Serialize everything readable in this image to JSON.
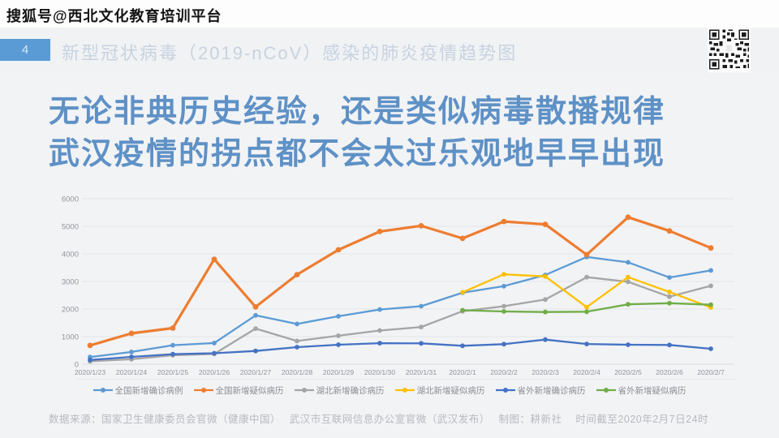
{
  "watermark": "搜狐号@西北文化教育培训平台",
  "header": {
    "page_number": "4",
    "title": "新型冠状病毒（2019-nCoV）感染的肺炎疫情趋势图"
  },
  "headline": {
    "line1": "无论非典历史经验，还是类似病毒散播规律",
    "line2": "武汉疫情的拐点都不会太过乐观地早早出现"
  },
  "colors": {
    "headline_blue": "#5e91c6",
    "badge_blue": "#5b9bd5",
    "grid_gray": "#e3e4e7"
  },
  "chart_data": {
    "type": "line",
    "title": "新型冠状病毒（2019-nCoV）感染的肺炎疫情趋势图",
    "xlabel": "",
    "ylabel": "",
    "ylim": [
      0,
      6000
    ],
    "ytick_step": 1000,
    "grid": true,
    "legend_position": "bottom",
    "categories": [
      "2020/1/23",
      "2020/1/24",
      "2020/1/25",
      "2020/1/26",
      "2020/1/27",
      "2020/1/28",
      "2020/1/29",
      "2020/1/30",
      "2020/1/31",
      "2020/2/1",
      "2020/2/2",
      "2020/2/3",
      "2020/2/4",
      "2020/2/5",
      "2020/2/6",
      "2020/2/7"
    ],
    "series": [
      {
        "name": "全国新增确诊病例",
        "color": "#5b9bd5",
        "values": [
          259,
          444,
          688,
          769,
          1771,
          1459,
          1737,
          1982,
          2102,
          2590,
          2829,
          3235,
          3887,
          3694,
          3143,
          3399
        ]
      },
      {
        "name": "全国新增疑似病历",
        "color": "#ed7d31",
        "values": [
          680,
          1118,
          1309,
          3806,
          2077,
          3248,
          4148,
          4812,
          5019,
          4562,
          5173,
          5072,
          3971,
          5328,
          4833,
          4214
        ]
      },
      {
        "name": "湖北新增确诊病历",
        "color": "#a5a5a5",
        "values": [
          105,
          180,
          323,
          371,
          1291,
          840,
          1032,
          1220,
          1347,
          1921,
          2103,
          2345,
          3156,
          2987,
          2447,
          2841
        ]
      },
      {
        "name": "湖北新增疑似病历",
        "color": "#ffc000",
        "values": [
          null,
          null,
          null,
          null,
          null,
          null,
          null,
          null,
          null,
          2606,
          3260,
          3182,
          2067,
          3156,
          2622,
          2057
        ]
      },
      {
        "name": "省外新增确诊病历",
        "color": "#4472c4",
        "values": [
          154,
          264,
          365,
          398,
          480,
          619,
          705,
          762,
          755,
          669,
          726,
          890,
          731,
          707,
          696,
          558
        ]
      },
      {
        "name": "省外新增疑似病历",
        "color": "#70ad47",
        "values": [
          null,
          null,
          null,
          null,
          null,
          null,
          null,
          null,
          null,
          1956,
          1913,
          1890,
          1904,
          2172,
          2211,
          2157
        ]
      }
    ]
  },
  "footer": {
    "text": "数据来源：国家卫生健康委员会官微（健康中国）　 武汉市互联网信息办公室官微（武汉发布）　 制图：耕新社　 时间截至2020年2月7日24时"
  }
}
